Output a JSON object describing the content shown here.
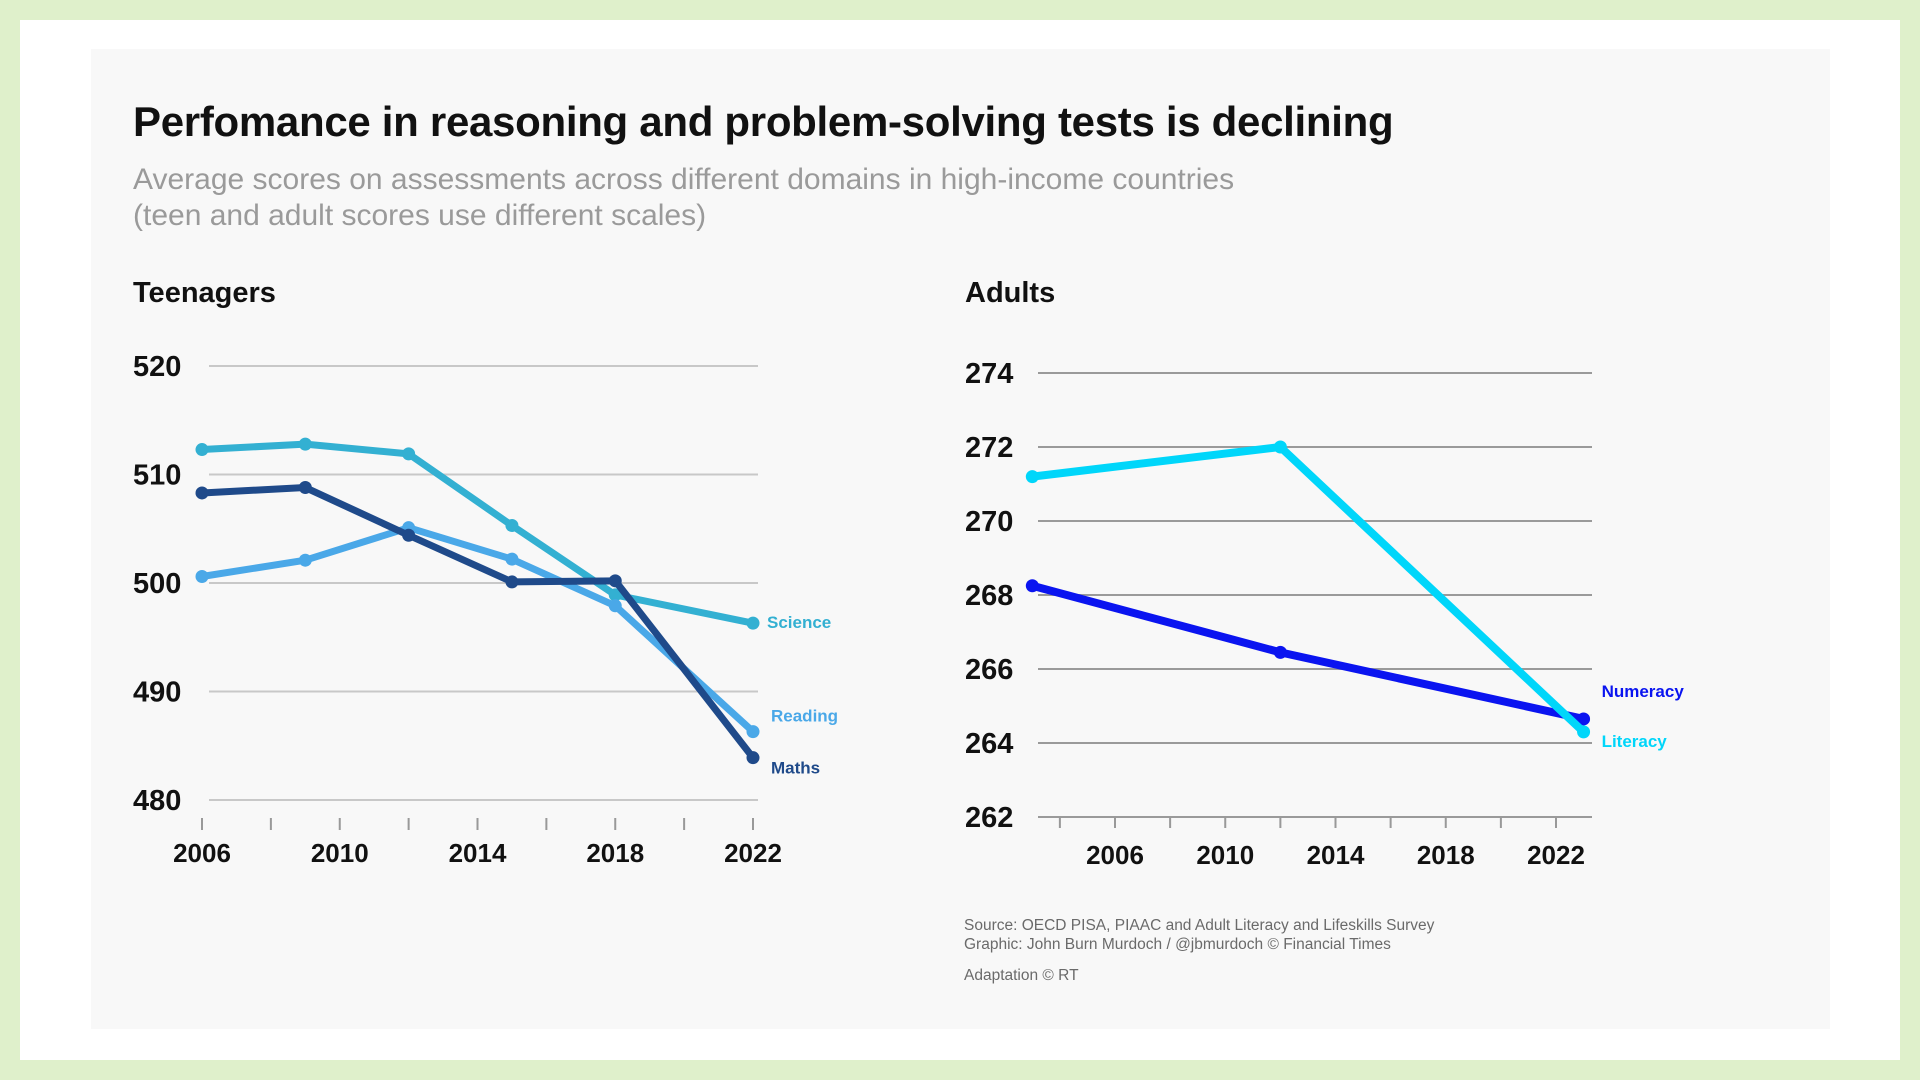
{
  "header": {
    "title": "Perfomance in reasoning and problem-solving tests is declining",
    "subtitle_line1": "Average scores on assessments across different domains in high-income countries",
    "subtitle_line2": "(teen and adult scores use different scales)"
  },
  "footer": {
    "source": "Source: OECD PISA, PIAAC and Adult Literacy and Lifeskills Survey",
    "graphic": "Graphic: John Burn Murdoch / @jbmurdoch © Financial Times",
    "adaptation": "Adaptation © RT"
  },
  "chart_data": [
    {
      "type": "line",
      "title": "Teenagers",
      "xlabel": "",
      "ylabel": "",
      "xlim": [
        2006,
        2022
      ],
      "ylim": [
        480,
        520
      ],
      "yticks": [
        480,
        490,
        500,
        510,
        520
      ],
      "xticks_labeled": [
        2006,
        2010,
        2014,
        2018,
        2022
      ],
      "grid": true,
      "legend": "direct labels at line ends (right)",
      "x": [
        2006,
        2009,
        2012,
        2015,
        2018,
        2022
      ],
      "series": [
        {
          "name": "Science",
          "color": "#33b0d2",
          "values": [
            512.3,
            512.8,
            511.9,
            505.3,
            498.9,
            496.3
          ]
        },
        {
          "name": "Reading",
          "color": "#4aa8e8",
          "values": [
            500.6,
            502.1,
            505.1,
            502.2,
            497.9,
            486.3
          ]
        },
        {
          "name": "Maths",
          "color": "#1f4a8a",
          "values": [
            508.3,
            508.8,
            504.4,
            500.1,
            500.2,
            483.9
          ]
        }
      ]
    },
    {
      "type": "line",
      "title": "Adults",
      "xlabel": "",
      "ylabel": "",
      "xlim": [
        2002,
        2023
      ],
      "ylim": [
        262,
        274
      ],
      "yticks": [
        262,
        264,
        266,
        268,
        270,
        272,
        274
      ],
      "xticks_labeled": [
        2006,
        2010,
        2014,
        2018,
        2022
      ],
      "grid": true,
      "legend": "direct labels at line ends (right)",
      "x": [
        2003,
        2012,
        2023
      ],
      "series": [
        {
          "name": "Numeracy",
          "color": "#0a14f0",
          "values": [
            268.25,
            266.45,
            264.65
          ]
        },
        {
          "name": "Literacy",
          "color": "#00d6fa",
          "values": [
            271.2,
            272.0,
            264.3
          ]
        }
      ]
    }
  ]
}
